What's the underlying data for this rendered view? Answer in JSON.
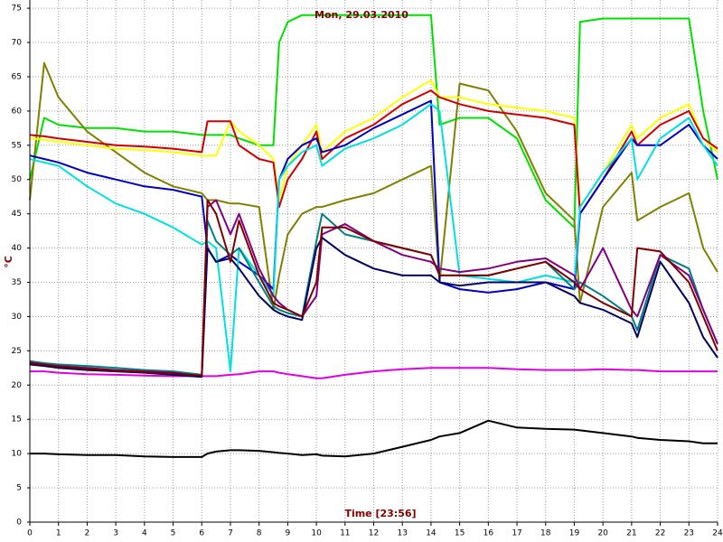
{
  "chart_data": {
    "type": "line",
    "title": "Mon, 29.03.2010",
    "x_label": "Time [23:56]",
    "y_label": "°C",
    "xlim": [
      0,
      24
    ],
    "xticks": [
      0,
      1,
      2,
      3,
      4,
      5,
      6,
      7,
      8,
      9,
      10,
      11,
      12,
      13,
      14,
      15,
      16,
      17,
      18,
      19,
      20,
      21,
      22,
      23,
      24
    ],
    "ylim": [
      0,
      76.2
    ],
    "yticks": [
      0,
      5,
      10,
      15,
      20,
      25,
      30,
      35,
      40,
      45,
      50,
      55,
      60,
      65,
      70,
      75
    ],
    "grid": true,
    "x": [
      0,
      0.5,
      1,
      2,
      3,
      4,
      5,
      6,
      6.2,
      6.5,
      7,
      7.3,
      8,
      8.5,
      8.7,
      9,
      9.5,
      10,
      10.2,
      11,
      12,
      13,
      14,
      14.3,
      15,
      16,
      17,
      18,
      19,
      19.2,
      20,
      21,
      21.2,
      22,
      23,
      23.5,
      24
    ],
    "series": [
      {
        "color": "#00e000",
        "values": [
          50,
          59,
          58,
          57.5,
          57.5,
          57,
          57,
          56.5,
          56.5,
          56.5,
          56.5,
          56,
          55,
          55,
          70,
          73,
          74,
          74,
          74,
          74,
          74,
          74,
          74,
          58,
          59,
          59,
          56,
          47,
          43,
          73,
          73.5,
          73.5,
          73.5,
          73.5,
          73.5,
          60,
          50
        ]
      },
      {
        "color": "#808000",
        "values": [
          47,
          67,
          62,
          57,
          54,
          51,
          49,
          48,
          47,
          47,
          46.5,
          46.5,
          46,
          31,
          36,
          42,
          45,
          46,
          46,
          47,
          48,
          50,
          52,
          35,
          64,
          63,
          57,
          48,
          44,
          32,
          46,
          51,
          44,
          46,
          48,
          40,
          36.5
        ]
      },
      {
        "color": "#ffff00",
        "values": [
          56,
          55.8,
          55.5,
          55,
          54.5,
          54.3,
          54,
          53.5,
          53.5,
          53.5,
          58.5,
          57,
          55,
          53,
          47,
          52,
          55,
          58,
          54,
          57,
          59,
          62,
          64.5,
          62,
          62,
          61,
          60.5,
          60,
          59,
          46,
          51,
          58,
          56,
          59,
          61,
          56,
          54
        ]
      },
      {
        "color": "#d00000",
        "values": [
          56.5,
          56.3,
          56,
          55.5,
          55,
          54.8,
          54.5,
          54,
          58.5,
          58.5,
          58.5,
          55,
          53,
          52.5,
          46,
          50,
          53,
          57,
          53,
          56,
          58,
          61,
          63,
          62,
          61,
          60,
          59.5,
          59,
          58,
          45,
          50,
          57,
          55,
          58,
          60,
          56,
          54.5
        ]
      },
      {
        "color": "#0000c0",
        "values": [
          53.5,
          53,
          52.5,
          51,
          50,
          49,
          48.5,
          47.5,
          40,
          38,
          39,
          38,
          36,
          34,
          50,
          53,
          55,
          56,
          54,
          55,
          57.5,
          59.5,
          61.5,
          35,
          34,
          33.5,
          34,
          35,
          34,
          45,
          50,
          56,
          55,
          55,
          58,
          55,
          53
        ]
      },
      {
        "color": "#00e0e0",
        "values": [
          53,
          52.5,
          52,
          49,
          46.5,
          45,
          43,
          40.5,
          41,
          40,
          22,
          40,
          36,
          33,
          50,
          52,
          54,
          55,
          52,
          54.5,
          56,
          58,
          61,
          60,
          36,
          35.5,
          35,
          36,
          35,
          46,
          51,
          56,
          50,
          56,
          59,
          55,
          52
        ]
      },
      {
        "color": "#e000e0",
        "values": [
          22,
          22,
          21.8,
          21.6,
          21.5,
          21.4,
          21.3,
          21.3,
          21.3,
          21.3,
          21.5,
          21.6,
          22,
          22,
          21.8,
          21.6,
          21.3,
          21,
          21,
          21.5,
          22,
          22.3,
          22.5,
          22.5,
          22.5,
          22.5,
          22.3,
          22.2,
          22.2,
          22.2,
          22.3,
          22.2,
          22.2,
          22,
          22,
          22,
          22
        ]
      },
      {
        "color": "#000000",
        "values": [
          10,
          10,
          9.9,
          9.8,
          9.8,
          9.6,
          9.5,
          9.5,
          10,
          10.3,
          10.5,
          10.5,
          10.4,
          10.2,
          10.1,
          10,
          9.8,
          9.9,
          9.7,
          9.6,
          10,
          11,
          12,
          12.5,
          13,
          14.8,
          13.8,
          13.6,
          13.5,
          13.4,
          13,
          12.5,
          12.3,
          12,
          11.8,
          11.5,
          11.5
        ]
      },
      {
        "color": "#008080",
        "values": [
          23.5,
          23.2,
          23,
          22.8,
          22.5,
          22.2,
          22,
          21.5,
          44,
          41,
          39,
          40,
          35,
          31.5,
          31,
          30.5,
          30,
          41,
          45,
          42,
          41,
          40,
          39,
          36,
          36,
          36,
          37,
          38,
          34,
          35,
          33,
          30,
          28,
          39,
          37,
          31,
          26
        ]
      },
      {
        "color": "#800080",
        "values": [
          23.3,
          23,
          22.8,
          22.5,
          22.2,
          22,
          21.8,
          21.3,
          46,
          47,
          42,
          45,
          37,
          33,
          32,
          31,
          30,
          33,
          42,
          43.5,
          41,
          39,
          38,
          37,
          36.5,
          37,
          38,
          38.5,
          36,
          34,
          40,
          31,
          30,
          39,
          36,
          31,
          26
        ]
      },
      {
        "color": "#000060",
        "values": [
          23,
          22.8,
          22.5,
          22.2,
          22,
          21.8,
          21.5,
          21.2,
          40,
          38,
          38.5,
          37,
          33,
          31,
          30.5,
          30,
          29.5,
          40,
          41.5,
          39,
          37,
          36,
          36,
          35,
          34.5,
          35,
          35,
          35,
          33,
          32,
          31,
          29,
          27,
          38,
          32,
          27,
          24
        ]
      },
      {
        "color": "#800000",
        "values": [
          23.2,
          23,
          22.7,
          22.4,
          22.1,
          21.9,
          21.7,
          21.4,
          47,
          45,
          38,
          44,
          36,
          32,
          31.5,
          31,
          30,
          35,
          43,
          43,
          41,
          40,
          39,
          36,
          36,
          36,
          37,
          38,
          35,
          34,
          32,
          30,
          40,
          39.5,
          35,
          30,
          25
        ]
      }
    ]
  }
}
